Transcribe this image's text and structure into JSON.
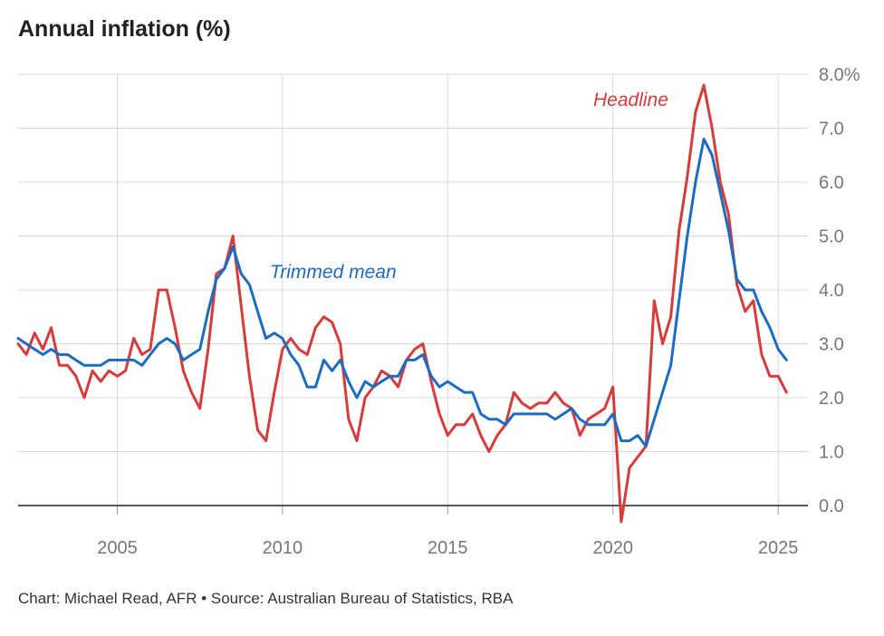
{
  "chart_data": {
    "type": "line",
    "title": "Annual inflation (%)",
    "xlabel": "",
    "ylabel": "",
    "xlim": [
      2002.0,
      2025.9
    ],
    "ylim": [
      0,
      8
    ],
    "x_ticks": [
      2005,
      2010,
      2015,
      2020,
      2025
    ],
    "x_tick_labels": [
      "2005",
      "2010",
      "2015",
      "2020",
      "2025"
    ],
    "y_ticks": [
      0,
      1,
      2,
      3,
      4,
      5,
      6,
      7,
      8
    ],
    "y_tick_labels": [
      "0.0",
      "1.0",
      "2.0",
      "3.0",
      "4.0",
      "5.0",
      "6.0",
      "7.0",
      "8.0%"
    ],
    "grid": true,
    "x_start": 2002.0,
    "x_step": 0.25,
    "series": [
      {
        "name": "Headline",
        "color": "#d93a3a",
        "label_text": "Headline",
        "values": [
          3.0,
          2.8,
          3.2,
          2.9,
          3.3,
          2.6,
          2.6,
          2.4,
          2.0,
          2.5,
          2.3,
          2.5,
          2.4,
          2.5,
          3.1,
          2.8,
          2.9,
          4.0,
          4.0,
          3.3,
          2.5,
          2.1,
          1.8,
          2.9,
          4.3,
          4.4,
          5.0,
          3.7,
          2.4,
          1.4,
          1.2,
          2.1,
          2.9,
          3.1,
          2.9,
          2.8,
          3.3,
          3.5,
          3.4,
          3.0,
          1.6,
          1.2,
          2.0,
          2.2,
          2.5,
          2.4,
          2.2,
          2.7,
          2.9,
          3.0,
          2.3,
          1.7,
          1.3,
          1.5,
          1.5,
          1.7,
          1.3,
          1.0,
          1.3,
          1.5,
          2.1,
          1.9,
          1.8,
          1.9,
          1.9,
          2.1,
          1.9,
          1.8,
          1.3,
          1.6,
          1.7,
          1.8,
          2.2,
          -0.3,
          0.7,
          0.9,
          1.1,
          3.8,
          3.0,
          3.5,
          5.1,
          6.1,
          7.3,
          7.8,
          7.0,
          6.0,
          5.4,
          4.1,
          3.6,
          3.8,
          2.8,
          2.4,
          2.4,
          2.1
        ]
      },
      {
        "name": "Trimmed mean",
        "color": "#1a6cc4",
        "label_text": "Trimmed mean",
        "values": [
          3.1,
          3.0,
          2.9,
          2.8,
          2.9,
          2.8,
          2.8,
          2.7,
          2.6,
          2.6,
          2.6,
          2.7,
          2.7,
          2.7,
          2.7,
          2.6,
          2.8,
          3.0,
          3.1,
          3.0,
          2.7,
          2.8,
          2.9,
          3.6,
          4.2,
          4.4,
          4.8,
          4.3,
          4.1,
          3.6,
          3.1,
          3.2,
          3.1,
          2.8,
          2.6,
          2.2,
          2.2,
          2.7,
          2.5,
          2.7,
          2.3,
          2.0,
          2.3,
          2.2,
          2.3,
          2.4,
          2.4,
          2.7,
          2.7,
          2.8,
          2.4,
          2.2,
          2.3,
          2.2,
          2.1,
          2.1,
          1.7,
          1.6,
          1.6,
          1.5,
          1.7,
          1.7,
          1.7,
          1.7,
          1.7,
          1.6,
          1.7,
          1.8,
          1.6,
          1.5,
          1.5,
          1.5,
          1.7,
          1.2,
          1.2,
          1.3,
          1.1,
          1.6,
          2.1,
          2.6,
          3.8,
          5.0,
          6.0,
          6.8,
          6.5,
          5.8,
          5.1,
          4.2,
          4.0,
          4.0,
          3.6,
          3.3,
          2.9,
          2.7
        ]
      }
    ]
  },
  "footer": "Chart: Michael Read, AFR • Source: Australian Bureau of Statistics, RBA"
}
